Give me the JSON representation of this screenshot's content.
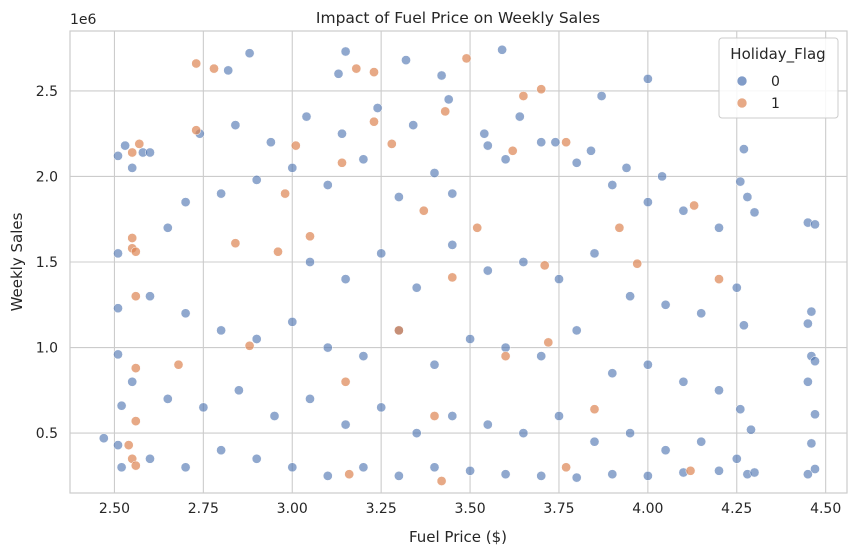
{
  "chart_data": {
    "type": "scatter",
    "title": "Impact of Fuel Price on Weekly Sales",
    "xlabel": "Fuel Price ($)",
    "ylabel": "Weekly Sales",
    "y_offset_label": "1e6",
    "xlim": [
      2.375,
      4.56
    ],
    "ylim": [
      150000,
      2850000
    ],
    "x_ticks": [
      2.5,
      2.75,
      3.0,
      3.25,
      3.5,
      3.75,
      4.0,
      4.25,
      4.5
    ],
    "x_tick_labels": [
      "2.50",
      "2.75",
      "3.00",
      "3.25",
      "3.50",
      "3.75",
      "4.00",
      "4.25",
      "4.50"
    ],
    "y_ticks": [
      500000,
      1000000,
      1500000,
      2000000,
      2500000
    ],
    "y_tick_labels": [
      "0.5",
      "1.0",
      "1.5",
      "2.0",
      "2.5"
    ],
    "grid": true,
    "legend": {
      "title": "Holiday_Flag",
      "placement": "top-right"
    },
    "series": [
      {
        "name": "0",
        "color": "#4c72b0",
        "points": [
          [
            2.47,
            470000
          ],
          [
            2.51,
            2120000
          ],
          [
            2.53,
            2180000
          ],
          [
            2.55,
            2050000
          ],
          [
            2.58,
            2140000
          ],
          [
            2.6,
            2140000
          ],
          [
            2.82,
            2620000
          ],
          [
            2.88,
            2720000
          ],
          [
            3.13,
            2600000
          ],
          [
            3.15,
            2730000
          ],
          [
            3.32,
            2680000
          ],
          [
            3.42,
            2590000
          ],
          [
            3.59,
            2740000
          ],
          [
            3.87,
            2470000
          ],
          [
            4.0,
            2570000
          ],
          [
            4.27,
            2160000
          ],
          [
            4.45,
            1730000
          ],
          [
            4.47,
            1720000
          ],
          [
            4.26,
            1970000
          ],
          [
            4.28,
            1880000
          ],
          [
            4.3,
            1790000
          ],
          [
            4.46,
            1210000
          ],
          [
            4.45,
            1140000
          ],
          [
            4.46,
            950000
          ],
          [
            4.47,
            920000
          ],
          [
            4.45,
            800000
          ],
          [
            4.47,
            610000
          ],
          [
            4.46,
            440000
          ],
          [
            4.45,
            260000
          ],
          [
            4.47,
            290000
          ],
          [
            4.28,
            260000
          ],
          [
            4.3,
            270000
          ],
          [
            4.29,
            520000
          ],
          [
            4.26,
            640000
          ],
          [
            4.27,
            1130000
          ],
          [
            4.25,
            1350000
          ],
          [
            2.51,
            1550000
          ],
          [
            2.51,
            1230000
          ],
          [
            2.51,
            960000
          ],
          [
            2.52,
            660000
          ],
          [
            2.51,
            430000
          ],
          [
            2.52,
            300000
          ],
          [
            3.4,
            2020000
          ],
          [
            3.45,
            1900000
          ],
          [
            3.55,
            2180000
          ],
          [
            3.6,
            2100000
          ],
          [
            3.7,
            2200000
          ],
          [
            3.8,
            2080000
          ],
          [
            3.9,
            1950000
          ],
          [
            4.0,
            1850000
          ],
          [
            4.1,
            1800000
          ],
          [
            4.2,
            1700000
          ],
          [
            2.9,
            1980000
          ],
          [
            2.8,
            1900000
          ],
          [
            2.7,
            1850000
          ],
          [
            2.65,
            1700000
          ],
          [
            3.0,
            2050000
          ],
          [
            3.1,
            1950000
          ],
          [
            3.2,
            2100000
          ],
          [
            3.3,
            1880000
          ],
          [
            3.05,
            1500000
          ],
          [
            3.15,
            1400000
          ],
          [
            3.25,
            1550000
          ],
          [
            3.35,
            1350000
          ],
          [
            3.45,
            1600000
          ],
          [
            3.55,
            1450000
          ],
          [
            3.65,
            1500000
          ],
          [
            3.75,
            1400000
          ],
          [
            3.85,
            1550000
          ],
          [
            3.95,
            1300000
          ],
          [
            4.05,
            1250000
          ],
          [
            4.15,
            1200000
          ],
          [
            2.6,
            1300000
          ],
          [
            2.7,
            1200000
          ],
          [
            2.8,
            1100000
          ],
          [
            2.9,
            1050000
          ],
          [
            3.0,
            1150000
          ],
          [
            3.1,
            1000000
          ],
          [
            3.2,
            950000
          ],
          [
            3.3,
            1100000
          ],
          [
            3.4,
            900000
          ],
          [
            3.5,
            1050000
          ],
          [
            3.6,
            1000000
          ],
          [
            3.7,
            950000
          ],
          [
            3.8,
            1100000
          ],
          [
            3.9,
            850000
          ],
          [
            4.0,
            900000
          ],
          [
            4.1,
            800000
          ],
          [
            4.2,
            750000
          ],
          [
            2.55,
            800000
          ],
          [
            2.65,
            700000
          ],
          [
            2.75,
            650000
          ],
          [
            2.85,
            750000
          ],
          [
            2.95,
            600000
          ],
          [
            3.05,
            700000
          ],
          [
            3.15,
            550000
          ],
          [
            3.25,
            650000
          ],
          [
            3.35,
            500000
          ],
          [
            3.45,
            600000
          ],
          [
            3.55,
            550000
          ],
          [
            3.65,
            500000
          ],
          [
            3.75,
            600000
          ],
          [
            3.85,
            450000
          ],
          [
            3.95,
            500000
          ],
          [
            4.05,
            400000
          ],
          [
            4.15,
            450000
          ],
          [
            4.25,
            350000
          ],
          [
            2.6,
            350000
          ],
          [
            2.7,
            300000
          ],
          [
            2.8,
            400000
          ],
          [
            2.9,
            350000
          ],
          [
            3.0,
            300000
          ],
          [
            3.1,
            250000
          ],
          [
            3.2,
            300000
          ],
          [
            3.3,
            250000
          ],
          [
            3.4,
            300000
          ],
          [
            3.5,
            280000
          ],
          [
            3.6,
            260000
          ],
          [
            3.7,
            250000
          ],
          [
            3.8,
            240000
          ],
          [
            3.9,
            260000
          ],
          [
            4.0,
            250000
          ],
          [
            4.1,
            270000
          ],
          [
            4.2,
            280000
          ],
          [
            2.74,
            2250000
          ],
          [
            2.84,
            2300000
          ],
          [
            2.94,
            2200000
          ],
          [
            3.04,
            2350000
          ],
          [
            3.14,
            2250000
          ],
          [
            3.24,
            2400000
          ],
          [
            3.34,
            2300000
          ],
          [
            3.44,
            2450000
          ],
          [
            3.54,
            2250000
          ],
          [
            3.64,
            2350000
          ],
          [
            3.74,
            2200000
          ],
          [
            3.84,
            2150000
          ],
          [
            3.94,
            2050000
          ],
          [
            4.04,
            2000000
          ]
        ]
      },
      {
        "name": "1",
        "color": "#dd8452",
        "points": [
          [
            2.55,
            2140000
          ],
          [
            2.57,
            2190000
          ],
          [
            2.73,
            2660000
          ],
          [
            2.78,
            2630000
          ],
          [
            3.18,
            2630000
          ],
          [
            3.23,
            2610000
          ],
          [
            3.49,
            2690000
          ],
          [
            3.65,
            2470000
          ],
          [
            3.7,
            2510000
          ],
          [
            3.43,
            2380000
          ],
          [
            2.73,
            2270000
          ],
          [
            3.01,
            2180000
          ],
          [
            3.23,
            2320000
          ],
          [
            3.77,
            2200000
          ],
          [
            2.55,
            1640000
          ],
          [
            2.55,
            1580000
          ],
          [
            2.56,
            1560000
          ],
          [
            2.56,
            1300000
          ],
          [
            2.56,
            880000
          ],
          [
            2.56,
            570000
          ],
          [
            2.54,
            430000
          ],
          [
            2.55,
            350000
          ],
          [
            2.56,
            310000
          ],
          [
            3.37,
            1800000
          ],
          [
            3.52,
            1700000
          ],
          [
            3.71,
            1480000
          ],
          [
            3.97,
            1490000
          ],
          [
            4.2,
            1400000
          ],
          [
            4.13,
            1830000
          ],
          [
            3.14,
            2080000
          ],
          [
            2.98,
            1900000
          ],
          [
            2.84,
            1610000
          ],
          [
            3.3,
            1100000
          ],
          [
            3.15,
            800000
          ],
          [
            3.4,
            600000
          ],
          [
            3.6,
            950000
          ],
          [
            3.72,
            1030000
          ],
          [
            3.85,
            640000
          ],
          [
            2.96,
            1560000
          ],
          [
            3.28,
            2190000
          ],
          [
            2.88,
            1010000
          ],
          [
            3.45,
            1410000
          ],
          [
            3.16,
            260000
          ],
          [
            3.42,
            220000
          ],
          [
            3.77,
            300000
          ],
          [
            4.12,
            280000
          ],
          [
            2.68,
            900000
          ],
          [
            3.92,
            1700000
          ],
          [
            3.62,
            2150000
          ],
          [
            3.05,
            1650000
          ]
        ]
      }
    ]
  }
}
